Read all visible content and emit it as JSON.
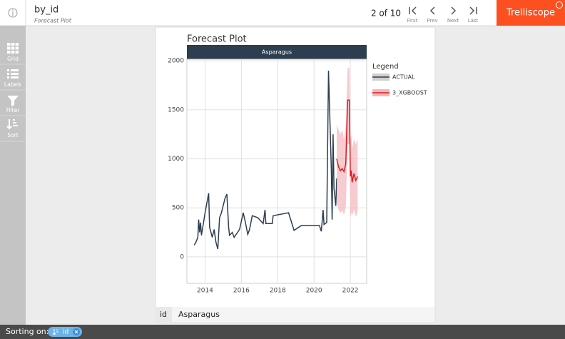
{
  "header": {
    "title": "by_id",
    "subtitle": "Forecast Plot",
    "pagination": "2 of 10",
    "nav": [
      "First",
      "Prev",
      "Next",
      "Last"
    ],
    "brand": "Trelliscope"
  },
  "sidebar": [
    "Grid",
    "Labels",
    "Filter",
    "Sort"
  ],
  "chart_data": {
    "type": "line",
    "title": "Forecast Plot",
    "strip": "Asparagus",
    "legend_title": "Legend",
    "xlim": [
      2013,
      2022.9
    ],
    "ylim": [
      -270,
      2060
    ],
    "xticks": [
      2014,
      2016,
      2018,
      2020,
      2022
    ],
    "yticks": [
      0,
      500,
      1000,
      1500,
      2000
    ],
    "grid": true,
    "series": [
      {
        "name": "ACTUAL",
        "color": "#2c3e50",
        "x": [
          2013.4,
          2013.5,
          2013.6,
          2013.65,
          2013.7,
          2013.75,
          2013.8,
          2014.0,
          2014.2,
          2014.25,
          2014.4,
          2014.5,
          2014.6,
          2014.7,
          2014.8,
          2014.9,
          2015.1,
          2015.2,
          2015.3,
          2015.35,
          2015.5,
          2015.6,
          2015.9,
          2016.1,
          2016.2,
          2016.35,
          2016.45,
          2016.6,
          2016.9,
          2017.2,
          2017.3,
          2017.35,
          2017.7,
          2017.75,
          2018.6,
          2018.9,
          2019.3,
          2020.3,
          2020.4,
          2020.5,
          2020.55,
          2020.7,
          2020.8,
          2020.95,
          2021.0,
          2021.05,
          2021.1,
          2021.2,
          2021.25
        ],
        "values": [
          120,
          150,
          200,
          380,
          250,
          350,
          220,
          450,
          650,
          300,
          200,
          280,
          150,
          80,
          400,
          450,
          600,
          640,
          300,
          220,
          250,
          200,
          280,
          450,
          370,
          230,
          280,
          420,
          400,
          340,
          480,
          340,
          340,
          420,
          450,
          270,
          320,
          320,
          260,
          480,
          330,
          350,
          1900,
          900,
          380,
          1250,
          700,
          520,
          800
        ]
      },
      {
        "name": "3_XGBOOST",
        "color": "#e31a1c",
        "band_color": "#f4b6bd",
        "x": [
          2021.25,
          2021.35,
          2021.45,
          2021.55,
          2021.65,
          2021.75,
          2021.85,
          2021.95,
          2022.0,
          2022.05,
          2022.1,
          2022.2,
          2022.3,
          2022.4
        ],
        "values": [
          1000,
          920,
          880,
          900,
          870,
          950,
          1600,
          1600,
          820,
          880,
          760,
          850,
          780,
          820
        ],
        "lower": [
          550,
          480,
          450,
          470,
          430,
          500,
          1150,
          1150,
          400,
          450,
          420,
          480,
          410,
          450
        ],
        "upper": [
          1350,
          1300,
          1250,
          1300,
          1200,
          1350,
          1930,
          1930,
          1200,
          1250,
          1100,
          1200,
          1150,
          1200
        ]
      }
    ]
  },
  "panel_label": {
    "key": "id",
    "value": "Asparagus"
  },
  "footer": {
    "label": "Sorting on:",
    "chip": "id"
  }
}
